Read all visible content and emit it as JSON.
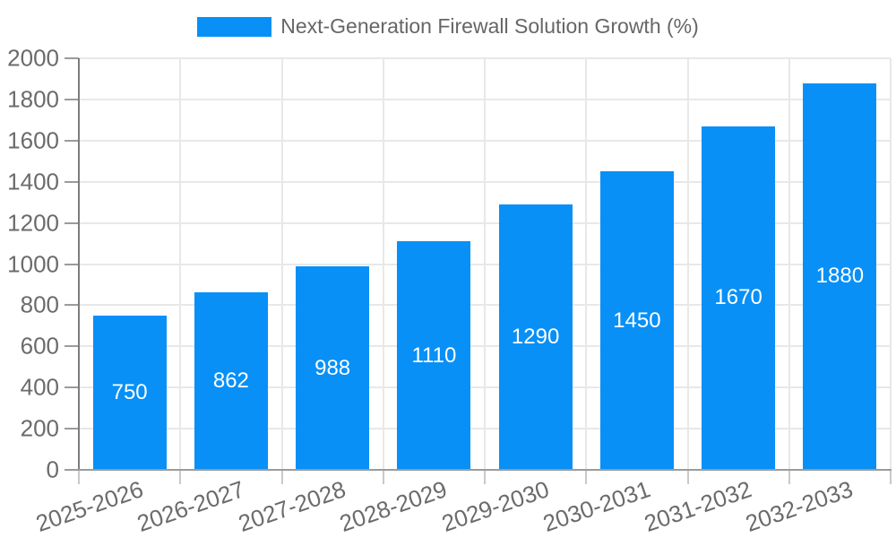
{
  "legend": {
    "label": "Next-Generation Firewall Solution Growth (%)"
  },
  "colors": {
    "bar": "#0890f6",
    "grid": "#e8e8e8",
    "x_axis_line": "#9b9b9b",
    "y_axis_line": "#7d7d7d",
    "tick_text": "#6b6b6b",
    "legend_text": "#666666",
    "value_label_text": "#ffffff"
  },
  "chart_data": {
    "type": "bar",
    "title": "Next-Generation Firewall Solution Growth (%)",
    "categories": [
      "2025-2026",
      "2026-2027",
      "2027-2028",
      "2028-2029",
      "2029-2030",
      "2030-2031",
      "2031-2032",
      "2032-2033"
    ],
    "values": [
      750,
      862,
      988,
      1110,
      1290,
      1450,
      1670,
      1880
    ],
    "xlabel": "",
    "ylabel": "",
    "ylim": [
      0,
      2000
    ],
    "ytick_step": 200,
    "ytick_labels": [
      "0",
      "200",
      "400",
      "600",
      "800",
      "1000",
      "1200",
      "1400",
      "1600",
      "1800",
      "2000"
    ],
    "grid": true,
    "legend_position": "top-center",
    "value_labels": "inside-center",
    "x_label_rotation_deg": -19
  }
}
